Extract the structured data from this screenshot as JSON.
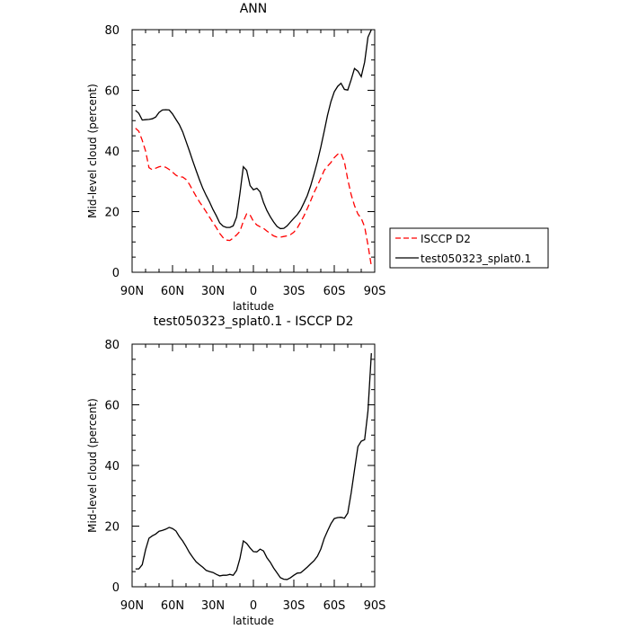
{
  "chart_data": [
    {
      "type": "line",
      "title": "ANN",
      "xlabel": "latitude",
      "ylabel": "Mid-level cloud (percent)",
      "x_ticks": [
        "90N",
        "60N",
        "30N",
        "0",
        "30S",
        "60S",
        "90S"
      ],
      "xlim": [
        90,
        -90
      ],
      "ylim": [
        0,
        80
      ],
      "y_ticks": [
        0,
        20,
        40,
        60,
        80
      ],
      "legend_position": "right",
      "series": [
        {
          "name": "ISCCP D2",
          "color": "#ff0000",
          "style": "dashed",
          "x": [
            87.5,
            85,
            82.5,
            80,
            77.5,
            75,
            72.5,
            70,
            67.5,
            65,
            62.5,
            60,
            57.5,
            55,
            52.5,
            50,
            47.5,
            45,
            42.5,
            40,
            37.5,
            35,
            32.5,
            30,
            27.5,
            25,
            22.5,
            20,
            17.5,
            15,
            12.5,
            10,
            7.5,
            5,
            2.5,
            0,
            -2.5,
            -5,
            -7.5,
            -10,
            -12.5,
            -15,
            -17.5,
            -20,
            -22.5,
            -25,
            -27.5,
            -30,
            -32.5,
            -35,
            -37.5,
            -40,
            -42.5,
            -45,
            -47.5,
            -50,
            -52.5,
            -55,
            -57.5,
            -60,
            -62.5,
            -65,
            -67.5,
            -70,
            -72.5,
            -75,
            -77.5,
            -80,
            -82.5,
            -85,
            -87.5
          ],
          "y": [
            47.5,
            46.5,
            43.5,
            40,
            34.5,
            33.8,
            34.3,
            34.8,
            35,
            34.6,
            33.9,
            33,
            32,
            31.4,
            31.4,
            30.6,
            29,
            27,
            25,
            23.2,
            21.6,
            19.9,
            18.1,
            16.4,
            14.7,
            12.8,
            11.4,
            10.6,
            10.5,
            11.3,
            12.3,
            13.5,
            16.8,
            19.3,
            18.9,
            16.8,
            15.6,
            15,
            14.5,
            13.6,
            12.8,
            12,
            11.6,
            11.6,
            11.8,
            12,
            12.4,
            13.2,
            14.6,
            16.5,
            18.6,
            21,
            23.6,
            26.3,
            28.6,
            31,
            33.6,
            35,
            36.2,
            37.8,
            38.9,
            39.3,
            36.4,
            30.6,
            25.6,
            22,
            19.2,
            17.8,
            15,
            9,
            2
          ]
        },
        {
          "name": "test050323_splat0.1",
          "color": "#000000",
          "style": "solid",
          "x": [
            87.5,
            85,
            82.5,
            80,
            77.5,
            75,
            72.5,
            70,
            67.5,
            65,
            62.5,
            60,
            57.5,
            55,
            52.5,
            50,
            47.5,
            45,
            42.5,
            40,
            37.5,
            35,
            32.5,
            30,
            27.5,
            25,
            22.5,
            20,
            17.5,
            15,
            12.5,
            10,
            7.5,
            5,
            2.5,
            0,
            -2.5,
            -5,
            -7.5,
            -10,
            -12.5,
            -15,
            -17.5,
            -20,
            -22.5,
            -25,
            -27.5,
            -30,
            -32.5,
            -35,
            -37.5,
            -40,
            -42.5,
            -45,
            -47.5,
            -50,
            -52.5,
            -55,
            -57.5,
            -60,
            -62.5,
            -65,
            -67.5,
            -70,
            -72.5,
            -75,
            -77.5,
            -80,
            -82.5,
            -85,
            -87.5
          ],
          "y": [
            53.4,
            52.4,
            50.2,
            50.3,
            50.4,
            50.6,
            51.2,
            52.7,
            53.5,
            53.6,
            53.5,
            52.2,
            50.4,
            48.7,
            46.3,
            43.2,
            40,
            36.7,
            33.5,
            30.5,
            27.6,
            25.3,
            23.1,
            20.7,
            18.6,
            16.3,
            15.2,
            14.8,
            14.8,
            15.3,
            18.2,
            26,
            34.8,
            33.6,
            28.6,
            27.2,
            27.7,
            26.5,
            23,
            20.4,
            18.3,
            16.6,
            15.1,
            14.4,
            14.5,
            15.3,
            16.6,
            17.8,
            19,
            20.6,
            22.9,
            25.3,
            28.6,
            32.4,
            36.6,
            41.2,
            46.5,
            51.8,
            56.3,
            59.5,
            61.3,
            62.3,
            60.3,
            60.1,
            63.5,
            67.2,
            66.3,
            64.5,
            69.3,
            77.5,
            80
          ]
        }
      ]
    },
    {
      "type": "line",
      "title": "test050323_splat0.1 - ISCCP D2",
      "xlabel": "latitude",
      "ylabel": "Mid-level cloud (percent)",
      "x_ticks": [
        "90N",
        "60N",
        "30N",
        "0",
        "30S",
        "60S",
        "90S"
      ],
      "xlim": [
        90,
        -90
      ],
      "ylim": [
        0,
        80
      ],
      "y_ticks": [
        0,
        20,
        40,
        60,
        80
      ],
      "series": [
        {
          "color": "#000000",
          "style": "solid",
          "x": [
            87.5,
            85,
            82.5,
            80,
            77.5,
            75,
            72.5,
            70,
            67.5,
            65,
            62.5,
            60,
            57.5,
            55,
            52.5,
            50,
            47.5,
            45,
            42.5,
            40,
            37.5,
            35,
            32.5,
            30,
            27.5,
            25,
            22.5,
            20,
            17.5,
            15,
            12.5,
            10,
            7.5,
            5,
            2.5,
            0,
            -2.5,
            -5,
            -7.5,
            -10,
            -12.5,
            -15,
            -17.5,
            -20,
            -22.5,
            -25,
            -27.5,
            -30,
            -32.5,
            -35,
            -37.5,
            -40,
            -42.5,
            -45,
            -47.5,
            -50,
            -52.5,
            -55,
            -57.5,
            -60,
            -62.5,
            -65,
            -67.5,
            -70,
            -72.5,
            -75,
            -77.5,
            -80,
            -82.5,
            -85,
            -87.5
          ],
          "y": [
            5.9,
            5.9,
            7.3,
            12.2,
            16,
            16.8,
            17.4,
            18.3,
            18.6,
            19,
            19.6,
            19.2,
            18.4,
            16.6,
            15.1,
            13.3,
            11.3,
            9.7,
            8.2,
            7.3,
            6.4,
            5.4,
            5,
            4.7,
            4.1,
            3.6,
            3.8,
            3.8,
            4.1,
            3.8,
            5.4,
            9.3,
            15.1,
            14.3,
            12.8,
            11.6,
            11.5,
            12.4,
            11.8,
            9.6,
            8.1,
            6.2,
            4.6,
            3,
            2.5,
            2.4,
            3,
            3.8,
            4.5,
            4.6,
            5.5,
            6.5,
            7.6,
            8.6,
            10.1,
            12.4,
            15.9,
            18.4,
            20.8,
            22.5,
            22.8,
            22.9,
            22.6,
            24.3,
            30.9,
            38.5,
            46.2,
            48,
            48.5,
            58,
            77
          ]
        }
      ]
    }
  ]
}
